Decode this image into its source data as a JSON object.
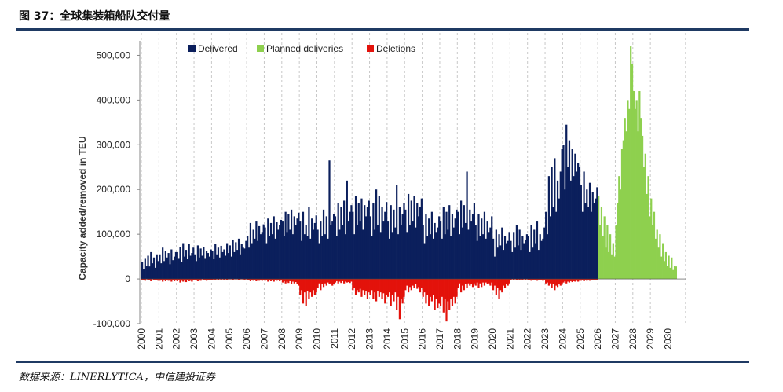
{
  "header": {
    "title": "图 37：全球集装箱船队交付量"
  },
  "footer": {
    "source": "数据来源：LINERLYTICA，中信建投证券"
  },
  "colors": {
    "delivered": "#0b1f5c",
    "planned": "#8ed04e",
    "deletions": "#e3120b",
    "rule": "#1f3a63"
  },
  "chart_data": {
    "type": "bar",
    "title": "",
    "xlabel": "",
    "ylabel": "Capacity added/removed in TEU",
    "ylim": [
      -100000,
      550000
    ],
    "yticks": [
      {
        "value": 500000,
        "label": "500,000"
      },
      {
        "value": 400000,
        "label": "400,000"
      },
      {
        "value": 300000,
        "label": "300,000"
      },
      {
        "value": 200000,
        "label": "200,000"
      },
      {
        "value": 100000,
        "label": "100,000"
      },
      {
        "value": 0,
        "label": "0"
      },
      {
        "value": -100000,
        "label": "-100,000"
      }
    ],
    "x_tick_labels": [
      "2000",
      "2001",
      "2002",
      "2003",
      "2004",
      "2005",
      "2006",
      "2007",
      "2008",
      "2009",
      "2010",
      "2011",
      "2012",
      "2013",
      "2014",
      "2015",
      "2016",
      "2017",
      "2018",
      "2019",
      "2020",
      "2021",
      "2022",
      "2023",
      "2024",
      "2025",
      "2026",
      "2027",
      "2028",
      "2029",
      "2030"
    ],
    "grid": "vertical dashed lines at year boundaries",
    "legend_position": "top",
    "frequency": "monthly, Jan 2000 - Jun 2030 (values estimated, representative monthly profile per year)",
    "series": [
      {
        "name": "Delivered",
        "color": "#0b1f5c",
        "year_values": {
          "2000": [
            38000,
            22000,
            45000,
            30000,
            52000,
            28000,
            60000,
            35000,
            48000,
            25000,
            55000,
            40000
          ],
          "2001": [
            55000,
            35000,
            70000,
            40000,
            62000,
            48000,
            58000,
            33000,
            66000,
            42000,
            50000,
            60000
          ],
          "2002": [
            60000,
            45000,
            72000,
            38000,
            80000,
            50000,
            65000,
            44000,
            78000,
            52000,
            58000,
            70000
          ],
          "2003": [
            55000,
            40000,
            75000,
            48000,
            68000,
            52000,
            72000,
            45000,
            63000,
            58000,
            50000,
            66000
          ],
          "2004": [
            62000,
            44000,
            78000,
            55000,
            70000,
            48000,
            74000,
            60000,
            66000,
            52000,
            80000,
            58000
          ],
          "2005": [
            75000,
            50000,
            88000,
            60000,
            82000,
            65000,
            90000,
            55000,
            78000,
            70000,
            68000,
            85000
          ],
          "2006": [
            95000,
            70000,
            125000,
            80000,
            110000,
            90000,
            130000,
            85000,
            118000,
            100000,
            105000,
            122000
          ],
          "2007": [
            115000,
            80000,
            135000,
            95000,
            125000,
            100000,
            140000,
            90000,
            128000,
            110000,
            120000,
            132000
          ],
          "2008": [
            130000,
            95000,
            150000,
            105000,
            145000,
            110000,
            155000,
            100000,
            140000,
            120000,
            135000,
            148000
          ],
          "2009": [
            130000,
            85000,
            150000,
            100000,
            120000,
            95000,
            160000,
            90000,
            135000,
            110000,
            125000,
            142000
          ],
          "2010": [
            110000,
            80000,
            130000,
            95000,
            155000,
            100000,
            140000,
            90000,
            265000,
            120000,
            130000,
            145000
          ],
          "2011": [
            140000,
            95000,
            170000,
            110000,
            160000,
            120000,
            175000,
            100000,
            220000,
            130000,
            150000,
            165000
          ],
          "2012": [
            150000,
            100000,
            185000,
            120000,
            170000,
            130000,
            180000,
            110000,
            165000,
            140000,
            160000,
            175000
          ],
          "2013": [
            140000,
            95000,
            170000,
            110000,
            200000,
            120000,
            185000,
            105000,
            160000,
            130000,
            150000,
            172000
          ],
          "2014": [
            130000,
            90000,
            165000,
            105000,
            155000,
            115000,
            210000,
            100000,
            160000,
            120000,
            145000,
            170000
          ],
          "2015": [
            155000,
            105000,
            190000,
            120000,
            175000,
            130000,
            185000,
            115000,
            170000,
            140000,
            160000,
            180000
          ],
          "2016": [
            120000,
            80000,
            145000,
            95000,
            135000,
            100000,
            150000,
            90000,
            125000,
            105000,
            115000,
            140000
          ],
          "2017": [
            130000,
            90000,
            160000,
            100000,
            150000,
            110000,
            165000,
            95000,
            145000,
            115000,
            135000,
            155000
          ],
          "2018": [
            150000,
            100000,
            175000,
            115000,
            165000,
            125000,
            240000,
            110000,
            155000,
            130000,
            145000,
            170000
          ],
          "2019": [
            120000,
            85000,
            145000,
            95000,
            135000,
            100000,
            150000,
            90000,
            130000,
            105000,
            115000,
            140000
          ],
          "2020": [
            90000,
            50000,
            110000,
            70000,
            100000,
            75000,
            115000,
            65000,
            95000,
            80000,
            85000,
            105000
          ],
          "2021": [
            85000,
            60000,
            105000,
            70000,
            120000,
            75000,
            110000,
            65000,
            95000,
            80000,
            88000,
            100000
          ],
          "2022": [
            95000,
            60000,
            120000,
            70000,
            110000,
            80000,
            130000,
            65000,
            100000,
            85000,
            90000,
            115000
          ],
          "2023": [
            150000,
            100000,
            230000,
            140000,
            250000,
            160000,
            270000,
            150000,
            220000,
            180000,
            240000,
            290000
          ],
          "2024": [
            300000,
            200000,
            345000,
            250000,
            310000,
            220000,
            290000,
            230000,
            280000,
            240000,
            260000,
            250000
          ],
          "2025": [
            210000,
            150000,
            240000,
            170000,
            200000,
            160000,
            215000,
            150000,
            195000,
            170000,
            180000,
            205000
          ]
        }
      },
      {
        "name": "Planned deliveries",
        "color": "#8ed04e",
        "year_values": {
          "2026": [
            185000,
            120000,
            160000,
            95000,
            140000,
            70000,
            120000,
            60000,
            100000,
            55000,
            80000,
            50000
          ],
          "2027": [
            120000,
            170000,
            230000,
            200000,
            290000,
            310000,
            360000,
            330000,
            400000,
            380000,
            520000,
            480000
          ],
          "2028": [
            420000,
            380000,
            400000,
            330000,
            420000,
            360000,
            320000,
            250000,
            280000,
            190000,
            230000,
            140000
          ],
          "2029": [
            180000,
            120000,
            150000,
            90000,
            110000,
            70000,
            100000,
            50000,
            80000,
            40000,
            60000,
            30000
          ],
          "2030": [
            52000,
            25000,
            48000,
            20000,
            30000,
            28000
          ]
        }
      },
      {
        "name": "Deletions",
        "color": "#e3120b",
        "year_values": {
          "2000": [
            -3000,
            -2000,
            -4000,
            -1000,
            -3000,
            -2000,
            -5000,
            -1000,
            -2000,
            -3000,
            -2000,
            -4000
          ],
          "2001": [
            -4000,
            -2000,
            -6000,
            -3000,
            -5000,
            -2000,
            -4000,
            -3000,
            -6000,
            -2000,
            -5000,
            -3000
          ],
          "2002": [
            -5000,
            -3000,
            -8000,
            -4000,
            -6000,
            -2000,
            -7000,
            -3000,
            -5000,
            -4000,
            -6000,
            -3000
          ],
          "2003": [
            -3000,
            -2000,
            -5000,
            -2000,
            -4000,
            -1000,
            -3000,
            -2000,
            -4000,
            -2000,
            -3000,
            -2000
          ],
          "2004": [
            -2000,
            -1000,
            -3000,
            -1000,
            -2000,
            -1000,
            -2000,
            -1000,
            -2000,
            -1000,
            -2000,
            -1000
          ],
          "2005": [
            -1000,
            -1000,
            -2000,
            -1000,
            -1000,
            -1000,
            -2000,
            -1000,
            -1000,
            -1000,
            -2000,
            -1000
          ],
          "2006": [
            -3000,
            -2000,
            -5000,
            -2000,
            -4000,
            -3000,
            -5000,
            -2000,
            -4000,
            -3000,
            -4000,
            -2000
          ],
          "2007": [
            -4000,
            -3000,
            -6000,
            -3000,
            -5000,
            -3000,
            -6000,
            -2000,
            -4000,
            -3000,
            -5000,
            -3000
          ],
          "2008": [
            -8000,
            -5000,
            -10000,
            -6000,
            -9000,
            -5000,
            -12000,
            -6000,
            -10000,
            -7000,
            -12000,
            -15000
          ],
          "2009": [
            -35000,
            -25000,
            -55000,
            -30000,
            -60000,
            -28000,
            -45000,
            -30000,
            -40000,
            -25000,
            -35000,
            -30000
          ],
          "2010": [
            -20000,
            -10000,
            -25000,
            -12000,
            -18000,
            -10000,
            -15000,
            -8000,
            -12000,
            -10000,
            -15000,
            -12000
          ],
          "2011": [
            -8000,
            -5000,
            -10000,
            -6000,
            -9000,
            -5000,
            -10000,
            -6000,
            -8000,
            -7000,
            -9000,
            -6000
          ],
          "2012": [
            -25000,
            -20000,
            -35000,
            -25000,
            -30000,
            -22000,
            -40000,
            -25000,
            -35000,
            -28000,
            -45000,
            -30000
          ],
          "2013": [
            -35000,
            -25000,
            -45000,
            -30000,
            -50000,
            -28000,
            -40000,
            -30000,
            -45000,
            -32000,
            -55000,
            -35000
          ],
          "2014": [
            -40000,
            -30000,
            -60000,
            -35000,
            -50000,
            -30000,
            -70000,
            -40000,
            -90000,
            -45000,
            -55000,
            -40000
          ],
          "2015": [
            -25000,
            -15000,
            -30000,
            -18000,
            -25000,
            -15000,
            -20000,
            -12000,
            -22000,
            -18000,
            -30000,
            -20000
          ],
          "2016": [
            -40000,
            -30000,
            -55000,
            -35000,
            -60000,
            -40000,
            -50000,
            -35000,
            -70000,
            -45000,
            -65000,
            -55000
          ],
          "2017": [
            -60000,
            -40000,
            -75000,
            -45000,
            -95000,
            -50000,
            -70000,
            -45000,
            -60000,
            -40000,
            -55000,
            -40000
          ],
          "2018": [
            -20000,
            -10000,
            -30000,
            -15000,
            -25000,
            -12000,
            -20000,
            -10000,
            -15000,
            -12000,
            -18000,
            -10000
          ],
          "2019": [
            -15000,
            -8000,
            -20000,
            -10000,
            -18000,
            -8000,
            -15000,
            -8000,
            -12000,
            -10000,
            -15000,
            -8000
          ],
          "2020": [
            -25000,
            -15000,
            -35000,
            -20000,
            -45000,
            -25000,
            -30000,
            -15000,
            -20000,
            -12000,
            -15000,
            -10000
          ],
          "2021": [
            -2000,
            -1000,
            -3000,
            -1000,
            -2000,
            -1000,
            -2000,
            -1000,
            -2000,
            -1000,
            -2000,
            -1000
          ],
          "2022": [
            -3000,
            -2000,
            -4000,
            -2000,
            -3000,
            -2000,
            -4000,
            -2000,
            -3000,
            -2000,
            -4000,
            -2000
          ],
          "2023": [
            -10000,
            -8000,
            -15000,
            -10000,
            -20000,
            -12000,
            -25000,
            -15000,
            -18000,
            -12000,
            -15000,
            -10000
          ],
          "2024": [
            -8000,
            -5000,
            -10000,
            -6000,
            -8000,
            -5000,
            -7000,
            -5000,
            -6000,
            -4000,
            -6000,
            -4000
          ],
          "2025": [
            -4000,
            -3000,
            -5000,
            -3000,
            -4000,
            -3000,
            -4000,
            -2000,
            -3000,
            -2000,
            -3000,
            -2000
          ]
        }
      }
    ]
  }
}
